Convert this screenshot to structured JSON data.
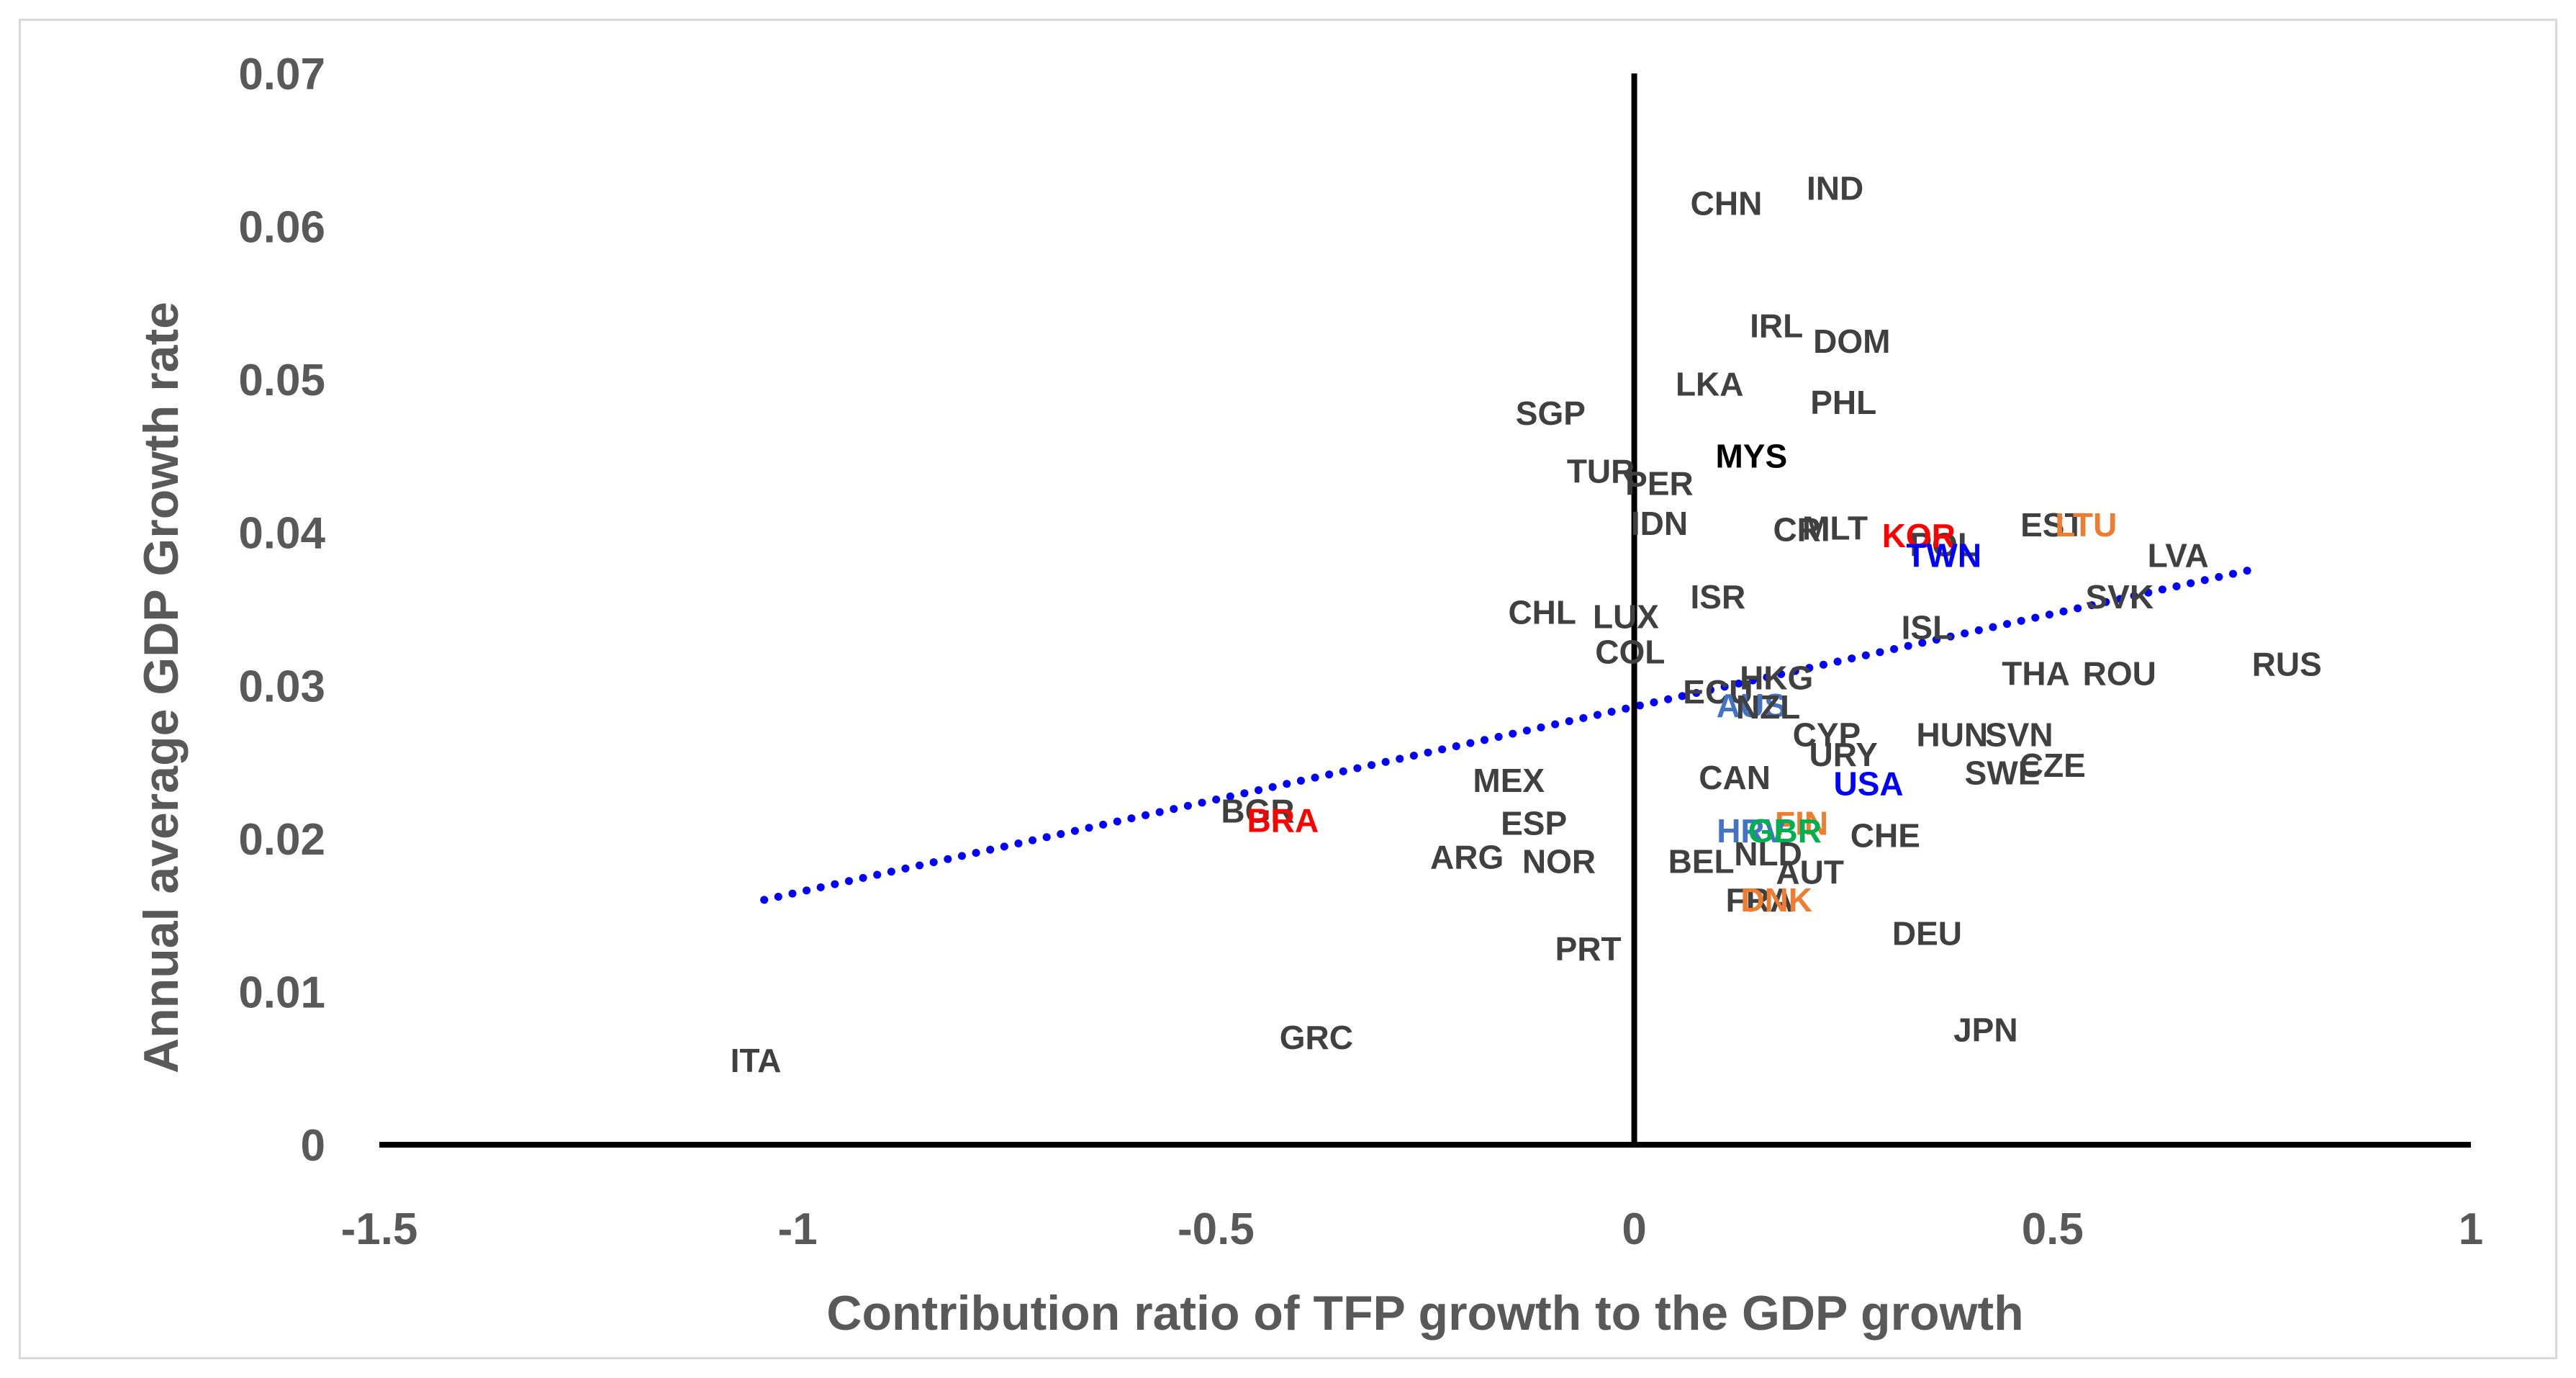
{
  "chart_data": {
    "type": "scatter",
    "title": "",
    "xlabel": "Contribution ratio of TFP growth to the GDP growth",
    "ylabel": "Annual average GDP Growth rate",
    "xlim": [
      -1.5,
      1
    ],
    "ylim": [
      0,
      0.07
    ],
    "xticks": [
      -1.5,
      -1,
      -0.5,
      0,
      0.5,
      1
    ],
    "xtick_labels": [
      "-1.5",
      "-1",
      "-0.5",
      "0",
      "0.5",
      "1"
    ],
    "yticks": [
      0,
      0.01,
      0.02,
      0.03,
      0.04,
      0.05,
      0.06,
      0.07
    ],
    "ytick_labels": [
      "0",
      "0.01",
      "0.02",
      "0.03",
      "0.04",
      "0.05",
      "0.06",
      "0.07"
    ],
    "grid": false,
    "trendline": {
      "style": "dotted",
      "color": "#0000ff",
      "x": [
        -1.04,
        0.74
      ],
      "y": [
        0.016,
        0.0376
      ]
    },
    "colors": {
      "default": "#404040",
      "red": "#ff0000",
      "blue": "#0000ff",
      "orange": "#ed7d31",
      "steelblue": "#4472c4",
      "green": "#00b050",
      "black": "#000000"
    },
    "points": [
      {
        "label": "CHN",
        "x": 0.11,
        "y": 0.0615,
        "color": "#404040"
      },
      {
        "label": "IND",
        "x": 0.24,
        "y": 0.0625,
        "color": "#404040"
      },
      {
        "label": "IRL",
        "x": 0.17,
        "y": 0.0535,
        "color": "#404040"
      },
      {
        "label": "DOM",
        "x": 0.26,
        "y": 0.0525,
        "color": "#404040"
      },
      {
        "label": "LKA",
        "x": 0.09,
        "y": 0.0497,
        "color": "#404040"
      },
      {
        "label": "PHL",
        "x": 0.25,
        "y": 0.0485,
        "color": "#404040"
      },
      {
        "label": "SGP",
        "x": -0.1,
        "y": 0.0478,
        "color": "#404040"
      },
      {
        "label": "MYS",
        "x": 0.14,
        "y": 0.045,
        "color": "#000000"
      },
      {
        "label": "TUR",
        "x": -0.04,
        "y": 0.044,
        "color": "#404040"
      },
      {
        "label": "PER",
        "x": 0.03,
        "y": 0.0432,
        "color": "#404040"
      },
      {
        "label": "IDN",
        "x": 0.03,
        "y": 0.0406,
        "color": "#404040"
      },
      {
        "label": "CRI",
        "x": 0.2,
        "y": 0.0402,
        "color": "#404040"
      },
      {
        "label": "MLT",
        "x": 0.24,
        "y": 0.0403,
        "color": "#404040"
      },
      {
        "label": "POL",
        "x": 0.37,
        "y": 0.0392,
        "color": "#404040"
      },
      {
        "label": "KOR",
        "x": 0.34,
        "y": 0.0398,
        "color": "#ff0000"
      },
      {
        "label": "TWN",
        "x": 0.37,
        "y": 0.0385,
        "color": "#0000ff"
      },
      {
        "label": "EST",
        "x": 0.5,
        "y": 0.0405,
        "color": "#404040"
      },
      {
        "label": "LTU",
        "x": 0.54,
        "y": 0.0405,
        "color": "#ed7d31"
      },
      {
        "label": "LVA",
        "x": 0.65,
        "y": 0.0385,
        "color": "#404040"
      },
      {
        "label": "SVK",
        "x": 0.58,
        "y": 0.0358,
        "color": "#404040"
      },
      {
        "label": "ISR",
        "x": 0.1,
        "y": 0.0358,
        "color": "#404040"
      },
      {
        "label": "CHL",
        "x": -0.11,
        "y": 0.0348,
        "color": "#404040"
      },
      {
        "label": "LUX",
        "x": -0.01,
        "y": 0.0345,
        "color": "#404040"
      },
      {
        "label": "ISL",
        "x": 0.35,
        "y": 0.0338,
        "color": "#404040"
      },
      {
        "label": "COL",
        "x": -0.005,
        "y": 0.0322,
        "color": "#404040"
      },
      {
        "label": "THA",
        "x": 0.48,
        "y": 0.0308,
        "color": "#404040"
      },
      {
        "label": "ROU",
        "x": 0.58,
        "y": 0.0308,
        "color": "#404040"
      },
      {
        "label": "RUS",
        "x": 0.78,
        "y": 0.0314,
        "color": "#404040"
      },
      {
        "label": "HKG",
        "x": 0.17,
        "y": 0.0305,
        "color": "#404040"
      },
      {
        "label": "ECU",
        "x": 0.1,
        "y": 0.0296,
        "color": "#404040"
      },
      {
        "label": "AUS",
        "x": 0.14,
        "y": 0.0287,
        "color": "#4472c4"
      },
      {
        "label": "NZL",
        "x": 0.16,
        "y": 0.0286,
        "color": "#404040"
      },
      {
        "label": "CYP",
        "x": 0.23,
        "y": 0.0268,
        "color": "#404040"
      },
      {
        "label": "HUN",
        "x": 0.38,
        "y": 0.0268,
        "color": "#404040"
      },
      {
        "label": "SVN",
        "x": 0.46,
        "y": 0.0268,
        "color": "#404040"
      },
      {
        "label": "URY",
        "x": 0.25,
        "y": 0.0255,
        "color": "#404040"
      },
      {
        "label": "CZE",
        "x": 0.5,
        "y": 0.0248,
        "color": "#404040"
      },
      {
        "label": "SWE",
        "x": 0.44,
        "y": 0.0243,
        "color": "#404040"
      },
      {
        "label": "CAN",
        "x": 0.12,
        "y": 0.024,
        "color": "#404040"
      },
      {
        "label": "USA",
        "x": 0.28,
        "y": 0.0236,
        "color": "#0000ff"
      },
      {
        "label": "MEX",
        "x": -0.15,
        "y": 0.0238,
        "color": "#404040"
      },
      {
        "label": "BGR",
        "x": -0.45,
        "y": 0.0218,
        "color": "#404040"
      },
      {
        "label": "BRA",
        "x": -0.42,
        "y": 0.0212,
        "color": "#ff0000"
      },
      {
        "label": "ESP",
        "x": -0.12,
        "y": 0.021,
        "color": "#404040"
      },
      {
        "label": "FIN",
        "x": 0.2,
        "y": 0.021,
        "color": "#ed7d31"
      },
      {
        "label": "HRV",
        "x": 0.14,
        "y": 0.0205,
        "color": "#4472c4"
      },
      {
        "label": "GBR",
        "x": 0.18,
        "y": 0.0205,
        "color": "#00b050"
      },
      {
        "label": "CHE",
        "x": 0.3,
        "y": 0.0202,
        "color": "#404040"
      },
      {
        "label": "NLD",
        "x": 0.16,
        "y": 0.019,
        "color": "#404040"
      },
      {
        "label": "ARG",
        "x": -0.2,
        "y": 0.0188,
        "color": "#404040"
      },
      {
        "label": "NOR",
        "x": -0.09,
        "y": 0.0185,
        "color": "#404040"
      },
      {
        "label": "BEL",
        "x": 0.08,
        "y": 0.0185,
        "color": "#404040"
      },
      {
        "label": "AUT",
        "x": 0.21,
        "y": 0.0178,
        "color": "#404040"
      },
      {
        "label": "FRA",
        "x": 0.15,
        "y": 0.016,
        "color": "#404040"
      },
      {
        "label": "DNK",
        "x": 0.17,
        "y": 0.016,
        "color": "#ed7d31"
      },
      {
        "label": "DEU",
        "x": 0.35,
        "y": 0.0138,
        "color": "#404040"
      },
      {
        "label": "PRT",
        "x": -0.055,
        "y": 0.0128,
        "color": "#404040"
      },
      {
        "label": "GRC",
        "x": -0.38,
        "y": 0.007,
        "color": "#404040"
      },
      {
        "label": "JPN",
        "x": 0.42,
        "y": 0.0075,
        "color": "#404040"
      },
      {
        "label": "ITA",
        "x": -1.05,
        "y": 0.0055,
        "color": "#404040"
      }
    ]
  }
}
